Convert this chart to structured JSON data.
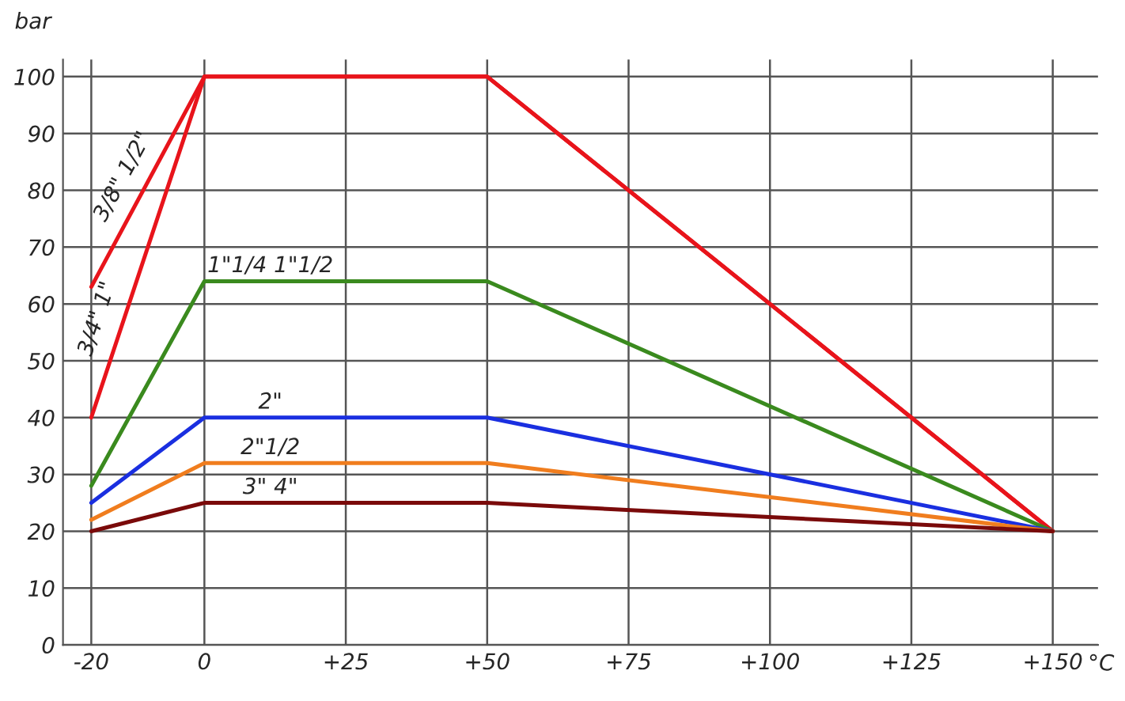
{
  "chart_data": {
    "type": "line",
    "xlabel": "°C",
    "ylabel": "bar",
    "x": [
      -20,
      0,
      50,
      150
    ],
    "series": [
      {
        "name": "3/8\" 1/2\"",
        "color": "#e8141b",
        "values": [
          63,
          100,
          100,
          20
        ]
      },
      {
        "name": "3/4\" 1\"",
        "color": "#e8141b",
        "values": [
          40,
          100,
          100,
          20
        ]
      },
      {
        "name": "1\"1/4 1\"1/2",
        "color": "#3a8a1e",
        "values": [
          28,
          64,
          64,
          20
        ]
      },
      {
        "name": "2\"",
        "color": "#1a2fe0",
        "values": [
          25,
          40,
          40,
          20
        ]
      },
      {
        "name": "2\"1/2",
        "color": "#f07d1e",
        "values": [
          22,
          32,
          32,
          20
        ]
      },
      {
        "name": "3\" 4\"",
        "color": "#7a0a0a",
        "values": [
          20,
          25,
          25,
          20
        ]
      }
    ],
    "xlim": [
      -25,
      158
    ],
    "ylim": [
      0,
      103
    ],
    "xticks": [
      -20,
      0,
      {
        "value": 25,
        "label": "+25"
      },
      {
        "value": 50,
        "label": "+50"
      },
      {
        "value": 75,
        "label": "+75"
      },
      {
        "value": 100,
        "label": "+100"
      },
      {
        "value": 125,
        "label": "+125"
      },
      {
        "value": 150,
        "label": "+150"
      }
    ],
    "yticks": [
      0,
      10,
      20,
      30,
      40,
      50,
      60,
      70,
      80,
      90,
      100
    ],
    "grid": true,
    "legend": false,
    "marker": "none",
    "line_style": "solid"
  }
}
